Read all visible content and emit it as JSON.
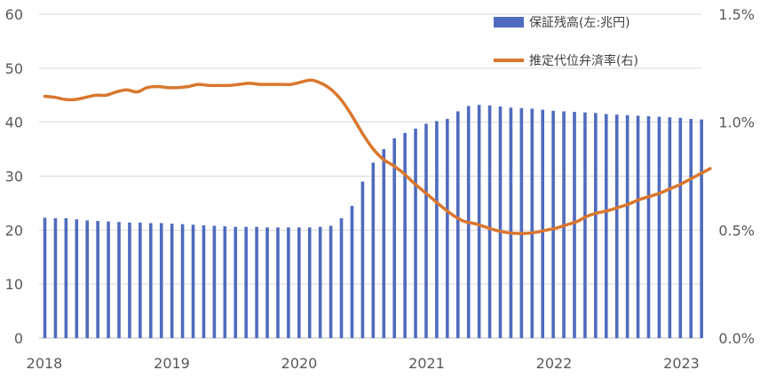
{
  "chart_data": {
    "type": "bar+line",
    "title": "",
    "grid": true,
    "legend_position": "top-right",
    "colors": {
      "bar": "#4F6BBF",
      "line": "#D9772E",
      "grid": "#D9D9D9",
      "axis": "#BFBFBF"
    },
    "x_ticks": [
      "2018",
      "2019",
      "2020",
      "2021",
      "2022",
      "2023"
    ],
    "y_left": {
      "min": 0,
      "max": 60,
      "ticks": [
        "0",
        "10",
        "20",
        "30",
        "40",
        "50",
        "60"
      ]
    },
    "y_right": {
      "min": 0,
      "max": 1.5,
      "ticks": [
        "0.0%",
        "0.5%",
        "1.0%",
        "1.5%"
      ]
    },
    "series": [
      {
        "name": "保証残高(左:兆円)",
        "kind": "bar",
        "axis": "left",
        "values": [
          22.3,
          22.2,
          22.2,
          22.0,
          21.8,
          21.7,
          21.6,
          21.5,
          21.4,
          21.4,
          21.3,
          21.3,
          21.2,
          21.1,
          21.0,
          20.9,
          20.8,
          20.7,
          20.6,
          20.6,
          20.6,
          20.5,
          20.5,
          20.5,
          20.5,
          20.5,
          20.6,
          20.8,
          22.2,
          24.5,
          29.0,
          32.5,
          35.0,
          37.0,
          38.0,
          38.8,
          39.7,
          40.2,
          40.6,
          42.0,
          43.0,
          43.2,
          43.1,
          42.9,
          42.7,
          42.6,
          42.5,
          42.3,
          42.1,
          42.0,
          41.9,
          41.8,
          41.7,
          41.5,
          41.4,
          41.3,
          41.2,
          41.1,
          41.0,
          40.9,
          40.8,
          40.6,
          40.5
        ]
      },
      {
        "name": "推定代位弁済率(右)",
        "kind": "line",
        "axis": "right",
        "values": [
          1.12,
          1.115,
          1.105,
          1.105,
          1.115,
          1.125,
          1.125,
          1.14,
          1.15,
          1.14,
          1.16,
          1.165,
          1.16,
          1.16,
          1.165,
          1.175,
          1.17,
          1.17,
          1.17,
          1.175,
          1.18,
          1.175,
          1.175,
          1.175,
          1.175,
          1.185,
          1.195,
          1.18,
          1.15,
          1.1,
          1.03,
          0.95,
          0.88,
          0.83,
          0.8,
          0.765,
          0.72,
          0.68,
          0.64,
          0.6,
          0.565,
          0.54,
          0.53,
          0.515,
          0.5,
          0.49,
          0.485,
          0.485,
          0.49,
          0.5,
          0.51,
          0.525,
          0.54,
          0.565,
          0.58,
          0.59,
          0.605,
          0.62,
          0.64,
          0.655,
          0.67,
          0.69,
          0.71,
          0.735,
          0.76,
          0.785
        ]
      }
    ]
  }
}
